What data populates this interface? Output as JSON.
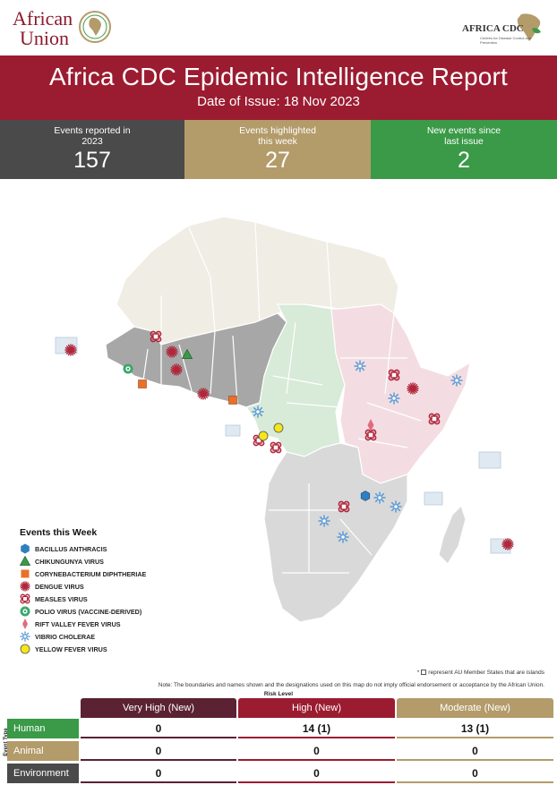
{
  "header": {
    "au_logo_line1": "African",
    "au_logo_line2": "Union",
    "cdc_logo_name": "AFRICA CDC",
    "cdc_logo_sub": "Centres for Disease Control and Prevention",
    "title": "Africa CDC Epidemic Intelligence Report",
    "date_of_issue": "Date of Issue: 18 Nov 2023"
  },
  "stats": [
    {
      "label_line1": "Events reported in",
      "label_line2": "2023",
      "value": "157",
      "color": "#4a4a4a"
    },
    {
      "label_line1": "Events highlighted",
      "label_line2": "this week",
      "value": "27",
      "color": "#b39b6a"
    },
    {
      "label_line1": "New events since",
      "label_line2": "last issue",
      "value": "2",
      "color": "#3a9a47"
    }
  ],
  "legend": {
    "title": "Events this Week",
    "items": [
      {
        "label": "BACILLUS ANTHRACIS",
        "icon": "hexagon-icon",
        "color": "#2f7fc1"
      },
      {
        "label": "CHIKUNGUNYA VIRUS",
        "icon": "triangle-icon",
        "color": "#3a9a47"
      },
      {
        "label": "CORYNEBACTERIUM DIPHTHERIAE",
        "icon": "square-icon",
        "color": "#e8702a"
      },
      {
        "label": "DENGUE VIRUS",
        "icon": "dengue-burst-icon",
        "color": "#b0263a"
      },
      {
        "label": "MEASLES VIRUS",
        "icon": "measles-cluster-icon",
        "color": "#b0263a"
      },
      {
        "label": "POLIO VIRUS (VACCINE-DERIVED)",
        "icon": "polio-circle-icon",
        "color": "#3aa86b"
      },
      {
        "label": "RIFT VALLEY FEVER VIRUS",
        "icon": "diamond-icon",
        "color": "#e06b7d"
      },
      {
        "label": "VIBRIO CHOLERAE",
        "icon": "cholera-burst-icon",
        "color": "#5b9bd5"
      },
      {
        "label": "YELLOW FEVER VIRUS",
        "icon": "circle-icon",
        "color": "#f5e61a"
      }
    ]
  },
  "notes": {
    "islands_prefix": "*",
    "islands_text": "represent AU Member States that are islands",
    "boundary": "Note: The boundaries and names shown and the designations used on this map do not imply official endorsement or acceptance by the African Union."
  },
  "risk_table": {
    "title": "Risk Level",
    "row_axis_label": "Event Type",
    "columns": [
      "Very High (New)",
      "High (New)",
      "Moderate (New)"
    ],
    "rows": [
      {
        "label": "Human",
        "values": [
          "0",
          "14 (1)",
          "13 (1)"
        ]
      },
      {
        "label": "Animal",
        "values": [
          "0",
          "0",
          "0"
        ]
      },
      {
        "label": "Environment",
        "values": [
          "0",
          "0",
          "0"
        ]
      }
    ]
  },
  "colors": {
    "brand_red": "#9b1c31",
    "brand_gold": "#b39b6a",
    "brand_green": "#3a9a47",
    "dark_grey": "#4a4a4a"
  }
}
